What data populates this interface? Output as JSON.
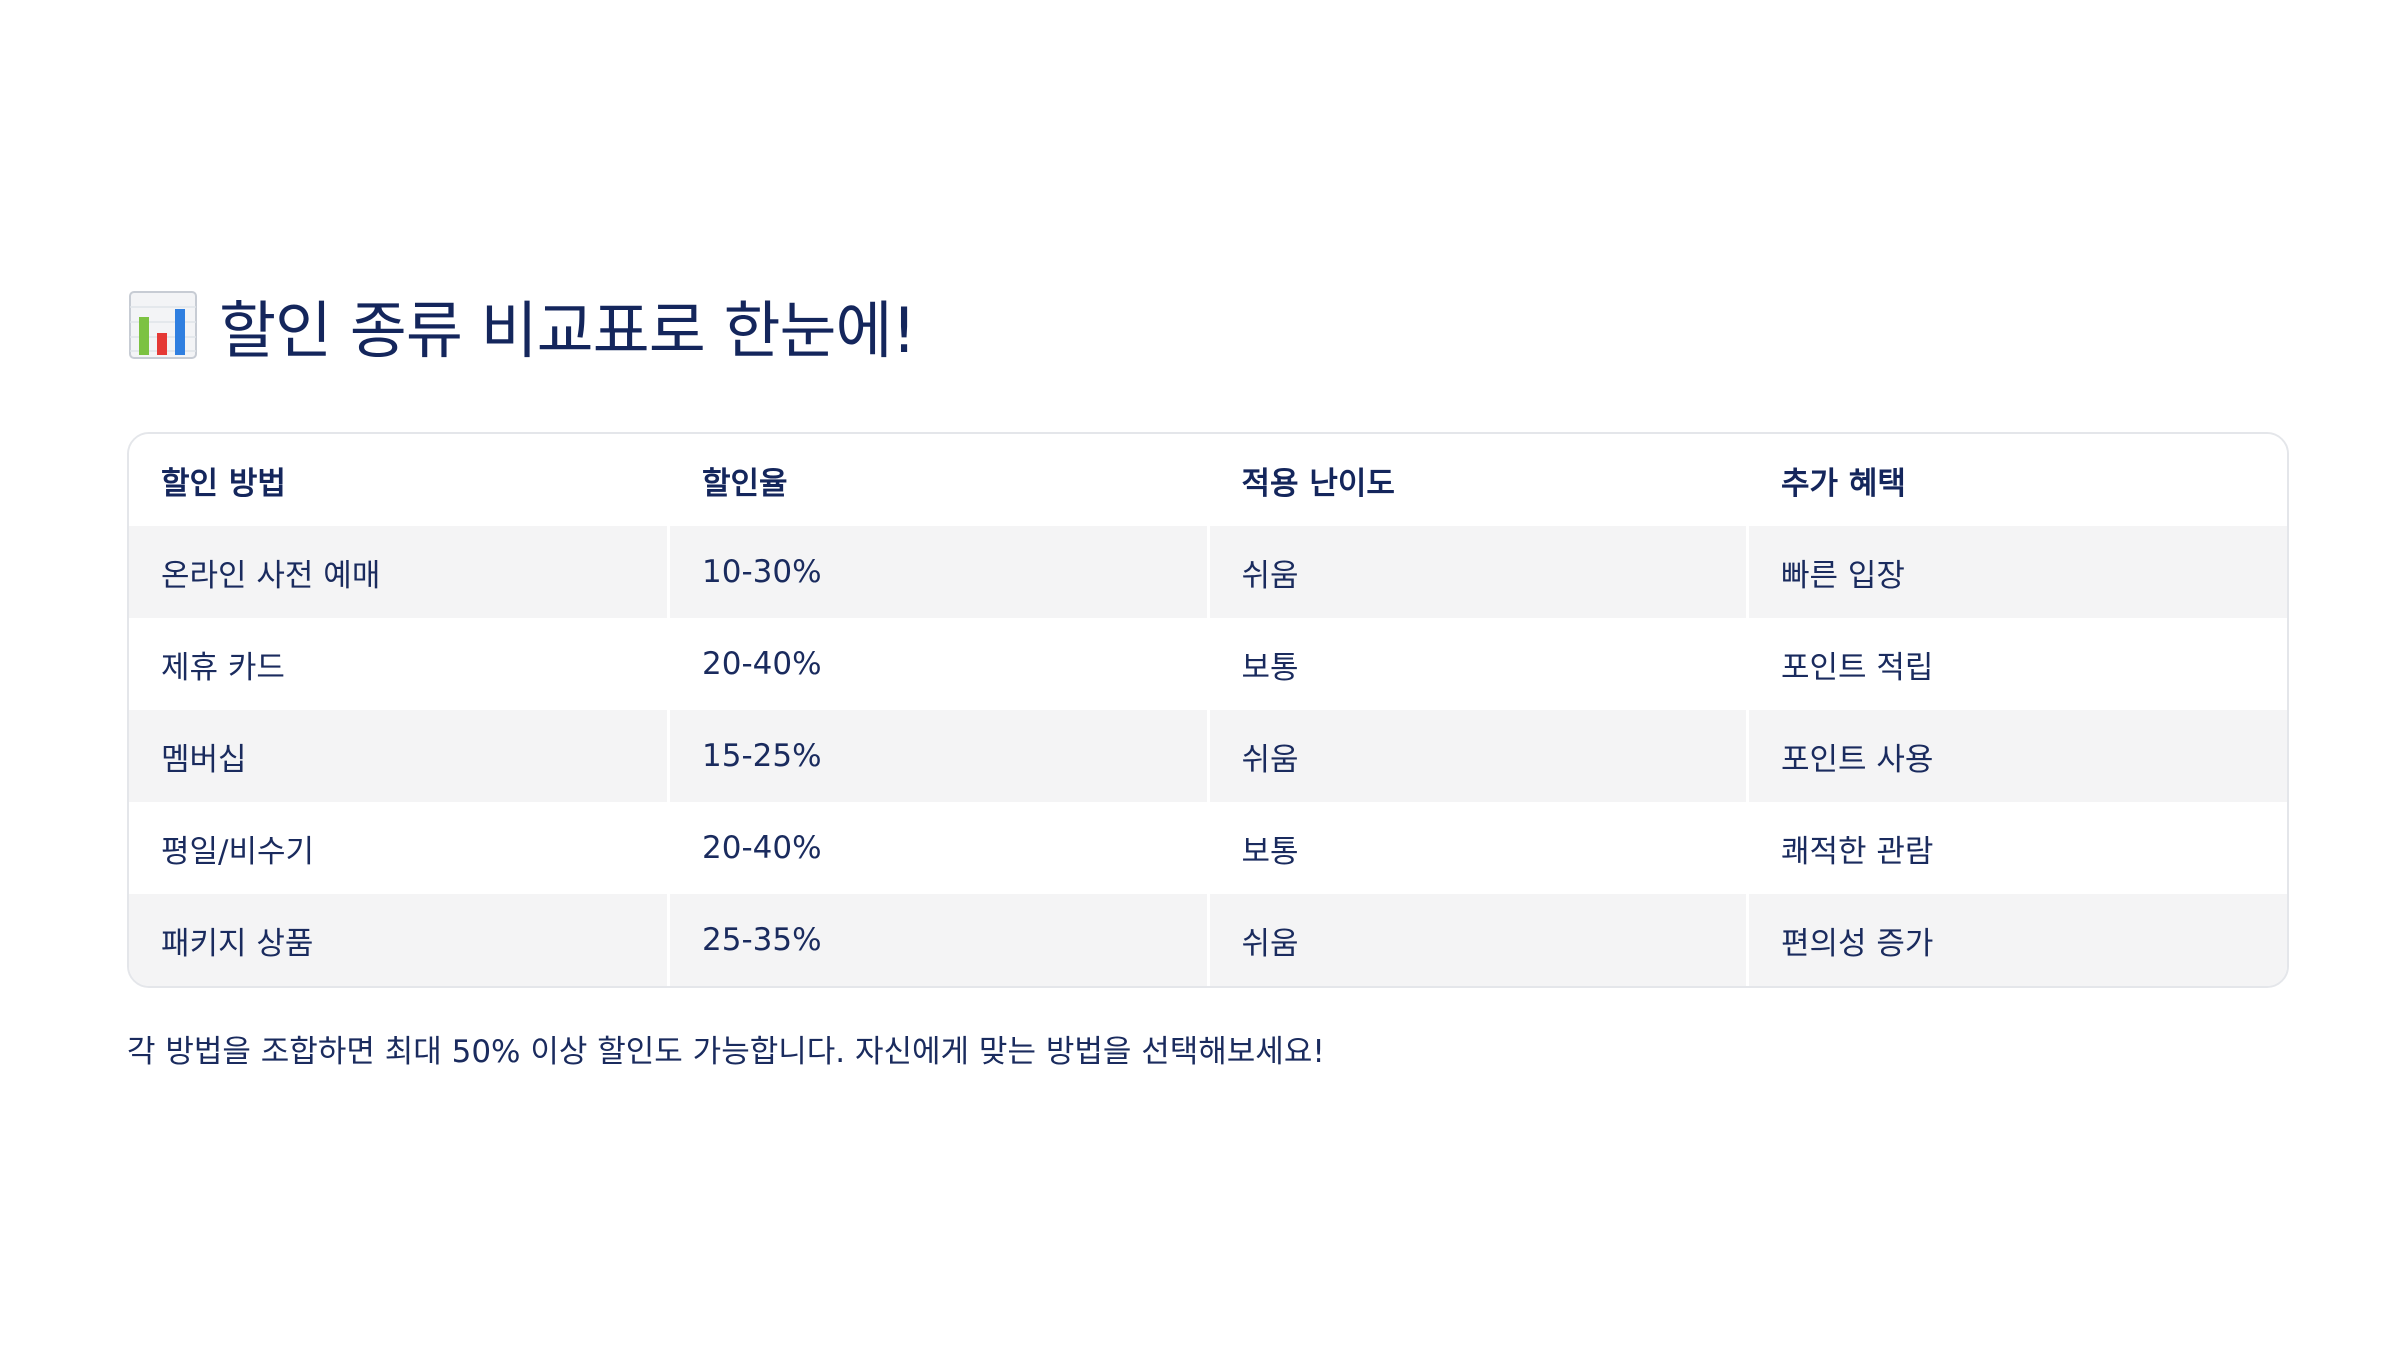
{
  "title": {
    "icon": "bar-chart-icon",
    "text": "할인 종류 비교표로 한눈에!"
  },
  "table": {
    "headers": [
      "할인 방법",
      "할인율",
      "적용 난이도",
      "추가 혜택"
    ],
    "rows": [
      [
        "온라인 사전 예매",
        "10-30%",
        "쉬움",
        "빠른 입장"
      ],
      [
        "제휴 카드",
        "20-40%",
        "보통",
        "포인트 적립"
      ],
      [
        "멤버십",
        "15-25%",
        "쉬움",
        "포인트 사용"
      ],
      [
        "평일/비수기",
        "20-40%",
        "보통",
        "쾌적한 관람"
      ],
      [
        "패키지 상품",
        "25-35%",
        "쉬움",
        "편의성 증가"
      ]
    ]
  },
  "footnote": "각 방법을 조합하면 최대 50% 이상 할인도 가능합니다. 자신에게 맞는 방법을 선택해보세요!",
  "colors": {
    "text": "#1a2b5e",
    "stripe": "#f4f4f5",
    "border": "#e4e6ea"
  }
}
